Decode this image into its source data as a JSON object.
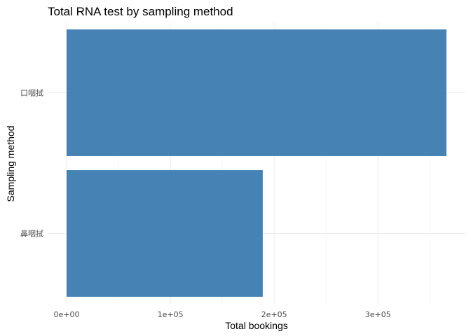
{
  "chart_data": {
    "type": "bar",
    "orientation": "horizontal",
    "title": "Total RNA test by sampling method",
    "xlabel": "Total bookings",
    "ylabel": "Sampling method",
    "categories": [
      "口咽拭",
      "鼻咽拭"
    ],
    "values": [
      366000,
      189000
    ],
    "xlim": [
      0,
      380000
    ],
    "x_ticks": [
      0,
      100000,
      200000,
      300000
    ],
    "x_tick_labels": [
      "0e+00",
      "1e+05",
      "2e+05",
      "3e+05"
    ],
    "bar_color": "#4682B4",
    "grid": true,
    "legend": "none"
  }
}
